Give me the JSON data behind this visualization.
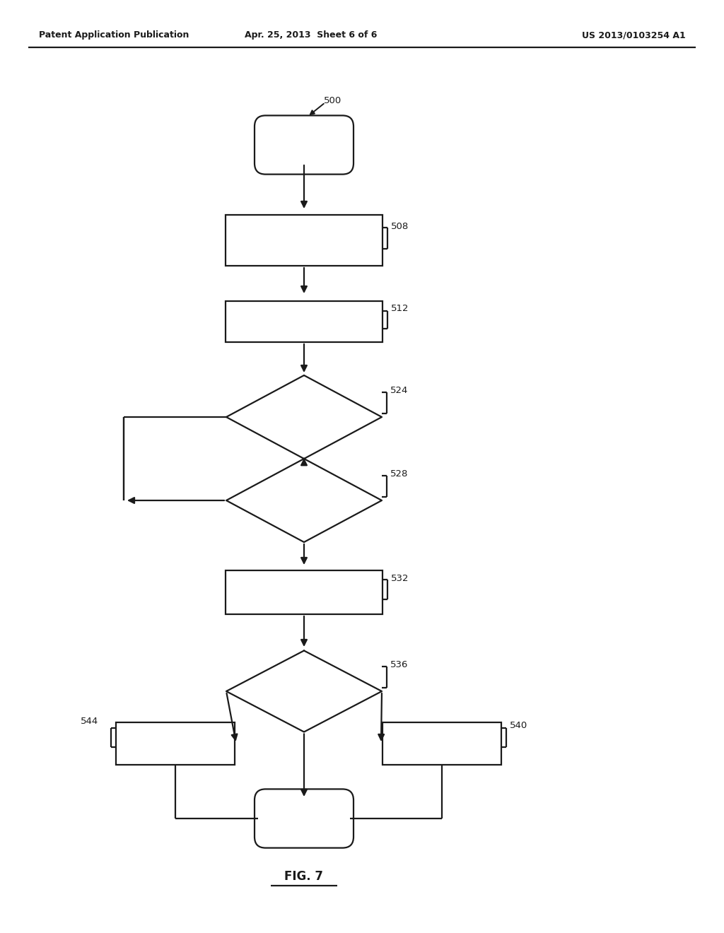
{
  "header_left": "Patent Application Publication",
  "header_center": "Apr. 25, 2013  Sheet 6 of 6",
  "header_right": "US 2013/0103254 A1",
  "figure_label": "FIG. 7",
  "label_500": "500",
  "label_508": "508",
  "label_512": "512",
  "label_524": "524",
  "label_528": "528",
  "label_532": "532",
  "label_536": "536",
  "label_540": "540",
  "label_544": "544",
  "bg_color": "#ffffff",
  "line_color": "#1a1a1a",
  "text_color": "#1a1a1a"
}
